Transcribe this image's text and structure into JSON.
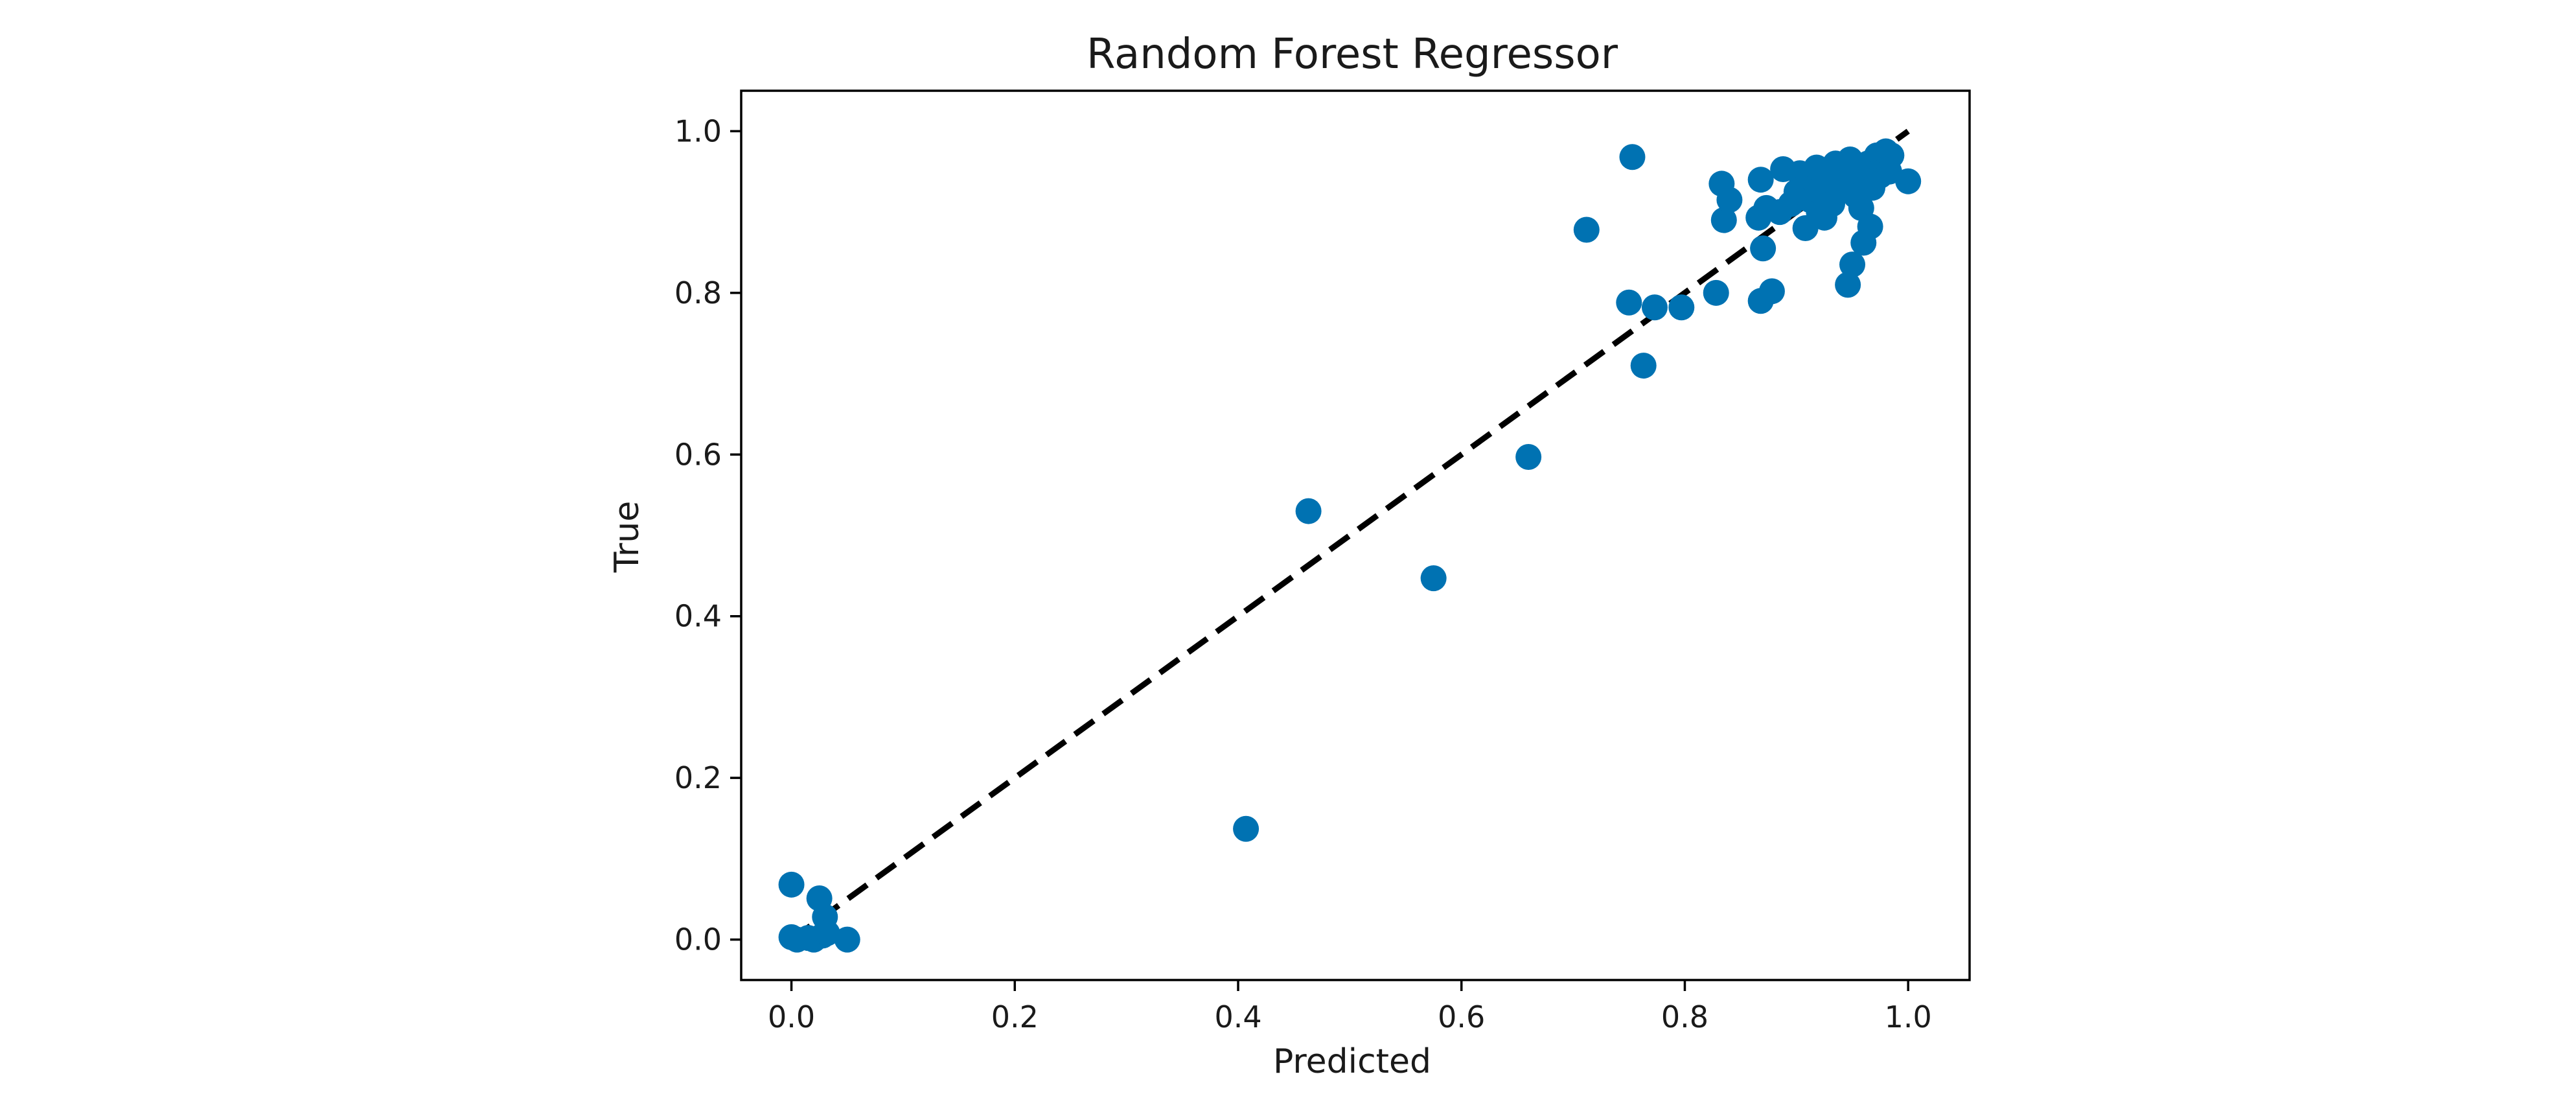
{
  "chart_data": {
    "type": "scatter",
    "title": "Random Forest Regressor",
    "xlabel": "Predicted",
    "ylabel": "True",
    "xlim": [
      -0.045,
      1.055
    ],
    "ylim": [
      -0.05,
      1.05
    ],
    "xticks": [
      0.0,
      0.2,
      0.4,
      0.6,
      0.8,
      1.0
    ],
    "yticks": [
      0.0,
      0.2,
      0.4,
      0.6,
      0.8,
      1.0
    ],
    "xtick_labels": [
      "0.0",
      "0.2",
      "0.4",
      "0.6",
      "0.8",
      "1.0"
    ],
    "ytick_labels": [
      "0.0",
      "0.2",
      "0.4",
      "0.6",
      "0.8",
      "1.0"
    ],
    "grid": false,
    "legend": "none",
    "point_color": "#0072b2",
    "reference_line": {
      "style": "dashed",
      "color": "#000000",
      "x": [
        0.0,
        1.0
      ],
      "y": [
        0.0,
        1.0
      ]
    },
    "series": [
      {
        "points": [
          [
            0.0,
            0.068
          ],
          [
            0.0,
            0.003
          ],
          [
            0.005,
            0.0
          ],
          [
            0.015,
            0.002
          ],
          [
            0.02,
            0.0
          ],
          [
            0.025,
            0.051
          ],
          [
            0.028,
            0.005
          ],
          [
            0.03,
            0.028
          ],
          [
            0.032,
            0.008
          ],
          [
            0.05,
            0.0
          ],
          [
            0.407,
            0.137
          ],
          [
            0.463,
            0.53
          ],
          [
            0.575,
            0.447
          ],
          [
            0.66,
            0.597
          ],
          [
            0.712,
            0.878
          ],
          [
            0.75,
            0.788
          ],
          [
            0.753,
            0.968
          ],
          [
            0.763,
            0.71
          ],
          [
            0.773,
            0.782
          ],
          [
            0.797,
            0.782
          ],
          [
            0.828,
            0.8
          ],
          [
            0.833,
            0.935
          ],
          [
            0.835,
            0.89
          ],
          [
            0.84,
            0.915
          ],
          [
            0.866,
            0.893
          ],
          [
            0.868,
            0.94
          ],
          [
            0.868,
            0.79
          ],
          [
            0.87,
            0.855
          ],
          [
            0.873,
            0.905
          ],
          [
            0.878,
            0.802
          ],
          [
            0.885,
            0.9
          ],
          [
            0.888,
            0.953
          ],
          [
            0.895,
            0.91
          ],
          [
            0.9,
            0.925
          ],
          [
            0.903,
            0.948
          ],
          [
            0.906,
            0.93
          ],
          [
            0.908,
            0.88
          ],
          [
            0.912,
            0.915
          ],
          [
            0.915,
            0.94
          ],
          [
            0.918,
            0.955
          ],
          [
            0.92,
            0.9
          ],
          [
            0.922,
            0.925
          ],
          [
            0.925,
            0.893
          ],
          [
            0.928,
            0.95
          ],
          [
            0.93,
            0.935
          ],
          [
            0.932,
            0.91
          ],
          [
            0.935,
            0.96
          ],
          [
            0.938,
            0.925
          ],
          [
            0.94,
            0.945
          ],
          [
            0.943,
            0.93
          ],
          [
            0.945,
            0.955
          ],
          [
            0.946,
            0.81
          ],
          [
            0.948,
            0.965
          ],
          [
            0.95,
            0.935
          ],
          [
            0.95,
            0.835
          ],
          [
            0.953,
            0.92
          ],
          [
            0.955,
            0.95
          ],
          [
            0.958,
            0.905
          ],
          [
            0.96,
            0.862
          ],
          [
            0.962,
            0.94
          ],
          [
            0.964,
            0.96
          ],
          [
            0.966,
            0.882
          ],
          [
            0.968,
            0.93
          ],
          [
            0.97,
            0.955
          ],
          [
            0.972,
            0.97
          ],
          [
            0.975,
            0.945
          ],
          [
            0.978,
            0.96
          ],
          [
            0.98,
            0.975
          ],
          [
            0.983,
            0.95
          ],
          [
            0.985,
            0.97
          ],
          [
            1.0,
            0.938
          ]
        ]
      }
    ]
  }
}
